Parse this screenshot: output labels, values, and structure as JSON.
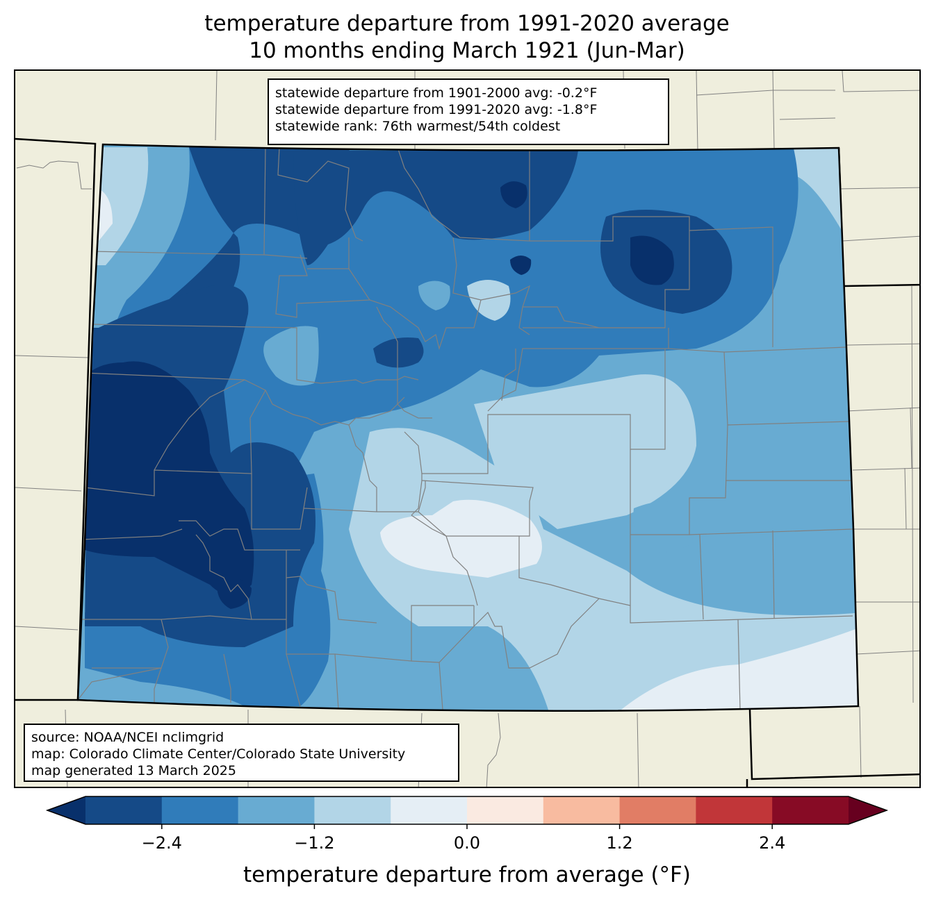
{
  "title": {
    "line1": "temperature departure from 1991-2020 average",
    "line2": "10 months ending March 1921 (Jun-Mar)"
  },
  "stats": {
    "line1": "statewide departure from 1901-2000 avg: -0.2°F",
    "line2": "statewide departure from 1991-2020 avg: -1.8°F",
    "line3": "statewide rank: 76th warmest/54th coldest"
  },
  "source": {
    "line1": "source: NOAA/NCEI nclimgrid",
    "line2": "map: Colorado Climate Center/Colorado State University",
    "line3": "map generated 13 March 2025"
  },
  "colorbar": {
    "label": "temperature departure from average (°F)",
    "ticks": [
      "−2.4",
      "−1.2",
      "0.0",
      "1.2",
      "2.4"
    ],
    "tick_values": [
      -2.4,
      -1.2,
      0.0,
      1.2,
      2.4
    ],
    "range": [
      -3.0,
      3.0
    ],
    "bounds": [
      -3.0,
      -2.4,
      -1.8,
      -1.2,
      -0.6,
      0.0,
      0.6,
      1.2,
      1.8,
      2.4,
      3.0
    ],
    "colors": [
      "#154a87",
      "#307cba",
      "#68abd2",
      "#b2d5e7",
      "#e5eef5",
      "#faeae1",
      "#f8bba0",
      "#e17d65",
      "#c13639",
      "#870b25"
    ],
    "under_color": "#08306b",
    "over_color": "#67001f"
  },
  "map_colors": {
    "land": "#efeedd",
    "county_border": "#808080",
    "state_border": "#000000",
    "min_anomaly": "#08306b"
  }
}
